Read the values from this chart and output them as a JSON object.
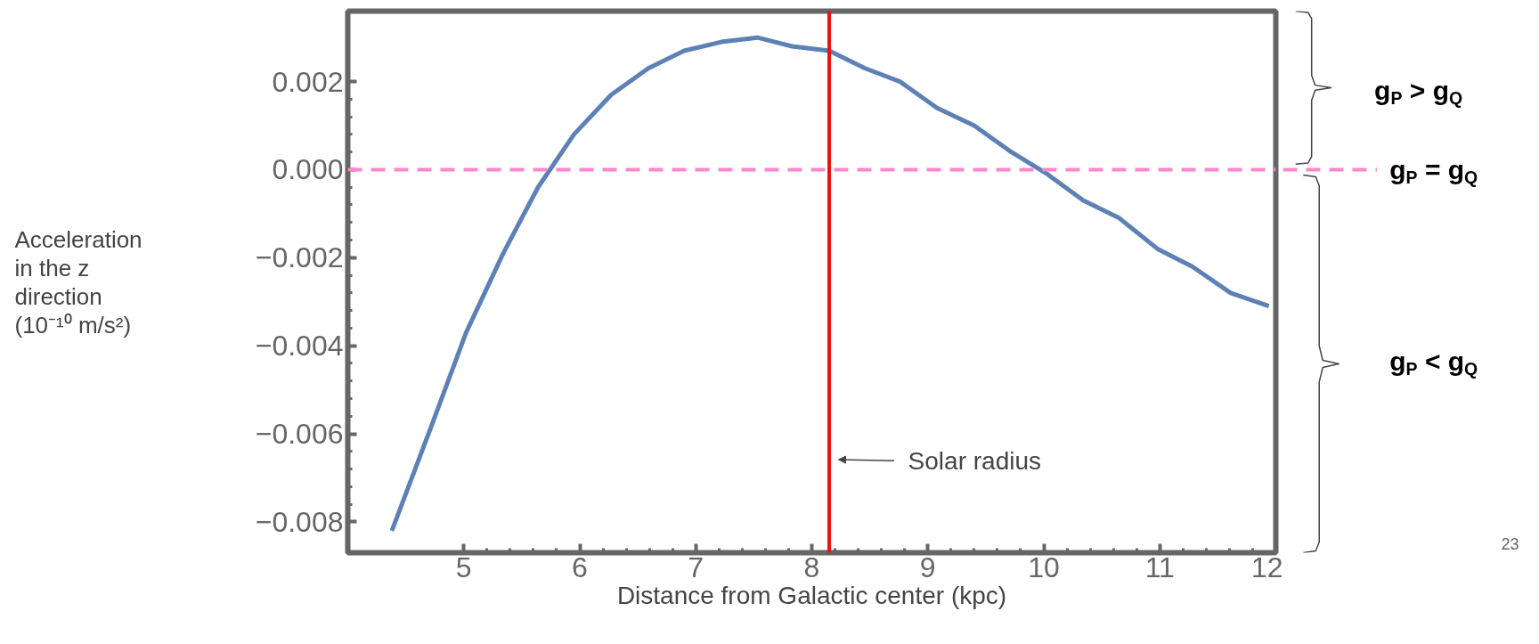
{
  "chart_data": {
    "type": "line",
    "xlabel": "Distance from Galactic center (kpc)",
    "ylabel": "Acceleration in the z direction (10⁻¹⁰ m/s²)",
    "x": [
      4.38,
      4.71,
      5.02,
      5.34,
      5.64,
      5.95,
      6.27,
      6.59,
      6.9,
      7.22,
      7.53,
      7.83,
      8.15,
      8.46,
      8.76,
      9.08,
      9.4,
      9.72,
      10.03,
      10.34,
      10.65,
      10.98,
      11.28,
      11.61,
      11.94
    ],
    "series": [
      {
        "color": "#5e81b5",
        "values": [
          -0.0082,
          -0.0059,
          -0.0037,
          -0.0019,
          -0.0004,
          0.0008,
          0.0017,
          0.0023,
          0.0027,
          0.0029,
          0.003,
          0.0028,
          0.0027,
          0.0023,
          0.002,
          0.0014,
          0.001,
          0.0004,
          -0.0001,
          -0.0007,
          -0.0011,
          -0.0018,
          -0.0022,
          -0.0028,
          -0.0031
        ]
      }
    ],
    "xlim": [
      4.0,
      12.0
    ],
    "ylim": [
      -0.0087,
      0.0036
    ],
    "xticks": [
      5,
      6,
      7,
      8,
      9,
      10,
      11,
      12
    ],
    "yticks": [
      {
        "value": -0.008,
        "label": "−0.008"
      },
      {
        "value": -0.006,
        "label": "−0.006"
      },
      {
        "value": -0.004,
        "label": "−0.004"
      },
      {
        "value": -0.002,
        "label": "−0.002"
      },
      {
        "value": 0,
        "label": "0.000"
      },
      0.002
    ],
    "ref_lines": [
      {
        "axis": "x",
        "value": 8.15,
        "label": "Solar radius",
        "color": "#ee1111"
      },
      {
        "axis": "y",
        "value": 0,
        "label": "g$_{P}$ = g$_{Q}$",
        "color": "#ff88cc",
        "line_style": "dashed"
      }
    ],
    "annotations": [
      "g$_{P}$ > g$_{Q}$",
      "g$_{P}$ < g$_{Q}$",
      "23"
    ],
    "grid": false,
    "marker": "none",
    "line_style": "solid"
  }
}
